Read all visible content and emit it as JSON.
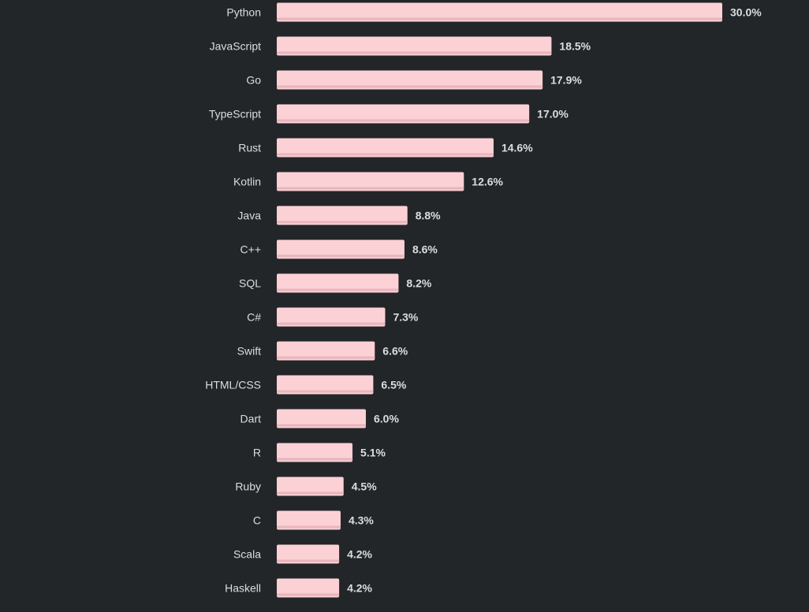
{
  "chart_data": {
    "type": "bar",
    "orientation": "horizontal",
    "categories": [
      "Python",
      "JavaScript",
      "Go",
      "TypeScript",
      "Rust",
      "Kotlin",
      "Java",
      "C++",
      "SQL",
      "C#",
      "Swift",
      "HTML/CSS",
      "Dart",
      "R",
      "Ruby",
      "C",
      "Scala",
      "Haskell"
    ],
    "values": [
      30.0,
      18.5,
      17.9,
      17.0,
      14.6,
      12.6,
      8.8,
      8.6,
      8.2,
      7.3,
      6.6,
      6.5,
      6.0,
      5.1,
      4.5,
      4.3,
      4.2,
      4.2
    ],
    "value_labels": [
      "30.0%",
      "18.5%",
      "17.9%",
      "17.0%",
      "14.6%",
      "12.6%",
      "8.8%",
      "8.6%",
      "8.2%",
      "7.3%",
      "6.6%",
      "6.5%",
      "6.0%",
      "5.1%",
      "4.5%",
      "4.3%",
      "4.2%",
      "4.2%"
    ],
    "unit": "%",
    "title": "",
    "xlabel": "",
    "ylabel": "",
    "grid": false,
    "legend": "none",
    "colors": {
      "background": "#232629",
      "bar": "#fcd1d6",
      "bar_shadow": "#e8b5bc",
      "text": "#dcdde0"
    }
  }
}
